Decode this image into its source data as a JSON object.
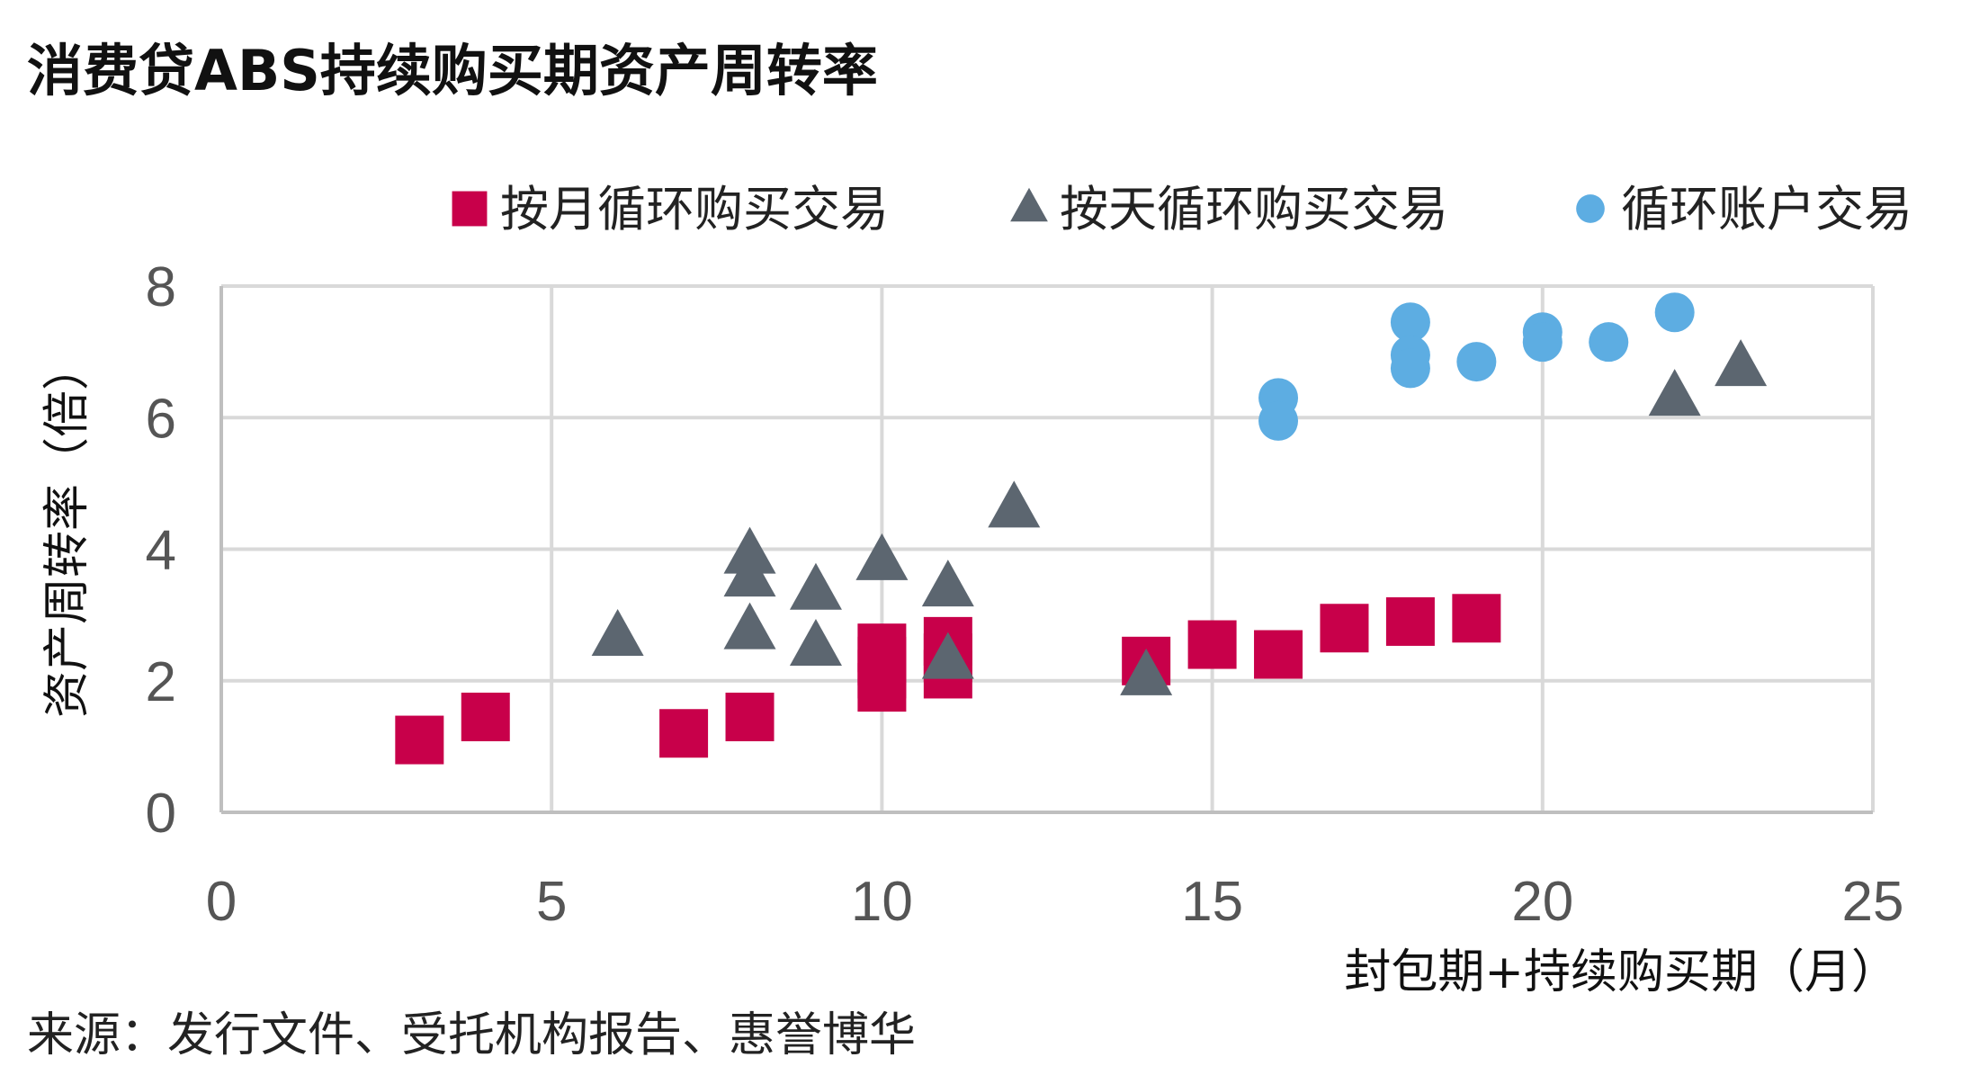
{
  "chart_data": {
    "type": "scatter",
    "title": "消费贷ABS持续购买期资产周转率",
    "xlabel": "封包期+持续购买期（月）",
    "ylabel": "资产周转率（倍）",
    "xlim": [
      0,
      25
    ],
    "ylim": [
      0,
      8
    ],
    "xticks": [
      "0",
      "5",
      "10",
      "15",
      "20",
      "25"
    ],
    "yticks": [
      "0",
      "2",
      "4",
      "6",
      "8"
    ],
    "grid": true,
    "legend_position": "top-right",
    "source": "来源：发行文件、受托机构报告、惠誉博华",
    "series": [
      {
        "name": "按月循环购买交易",
        "marker": "square",
        "color": "#C8004A",
        "points": [
          [
            3,
            1.1
          ],
          [
            4,
            1.45
          ],
          [
            7,
            1.2
          ],
          [
            8,
            1.45
          ],
          [
            10,
            2.5
          ],
          [
            10,
            2.3
          ],
          [
            10,
            2.1
          ],
          [
            10,
            1.9
          ],
          [
            11,
            2.6
          ],
          [
            11,
            2.35
          ],
          [
            11,
            2.1
          ],
          [
            14,
            2.3
          ],
          [
            15,
            2.55
          ],
          [
            16,
            2.4
          ],
          [
            17,
            2.8
          ],
          [
            18,
            2.9
          ],
          [
            19,
            2.95
          ]
        ]
      },
      {
        "name": "按天循环购买交易",
        "marker": "triangle",
        "color": "#5C6670",
        "points": [
          [
            6,
            2.65
          ],
          [
            8,
            3.9
          ],
          [
            8,
            3.55
          ],
          [
            8,
            2.75
          ],
          [
            9,
            3.35
          ],
          [
            9,
            2.5
          ],
          [
            10,
            3.8
          ],
          [
            11,
            3.4
          ],
          [
            11,
            2.3
          ],
          [
            12,
            4.6
          ],
          [
            14,
            2.05
          ],
          [
            22,
            6.3
          ],
          [
            23,
            6.75
          ]
        ]
      },
      {
        "name": "循环账户交易",
        "marker": "circle",
        "color": "#5DADE2",
        "points": [
          [
            16,
            6.3
          ],
          [
            16,
            5.95
          ],
          [
            18,
            7.45
          ],
          [
            18,
            6.95
          ],
          [
            18,
            6.75
          ],
          [
            19,
            6.85
          ],
          [
            20,
            7.3
          ],
          [
            20,
            7.15
          ],
          [
            21,
            7.15
          ],
          [
            22,
            7.6
          ]
        ]
      }
    ]
  }
}
